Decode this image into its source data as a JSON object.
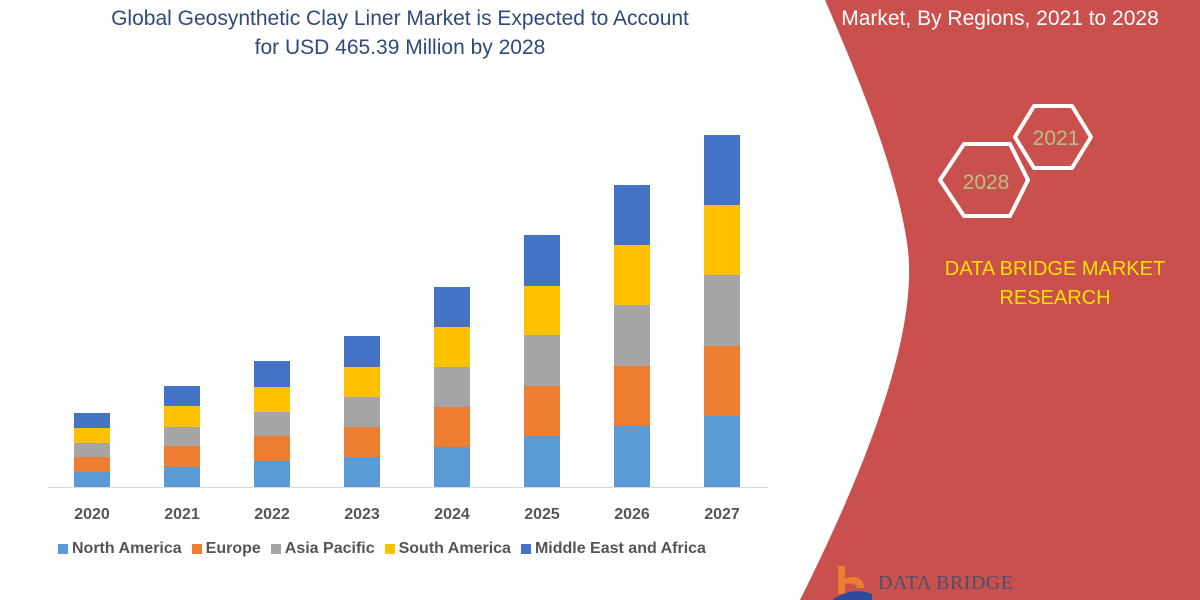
{
  "header": {
    "title_line1": "Global Geosynthetic Clay Liner Market is Expected to Account",
    "title_line2": "for USD 465.39 Million by 2028",
    "right_title": "Market, By Regions, 2021 to 2028"
  },
  "badges": {
    "year_start": "2021",
    "year_end": "2028"
  },
  "brand": {
    "line1": "DATA BRIDGE MARKET",
    "line2": "RESEARCH",
    "logo_text": "DATA BRIDGE"
  },
  "colors": {
    "panel": "#c9504c",
    "brand_text": "#ffe000",
    "badge_text": "#b5c08a",
    "title": "#2f4a7a"
  },
  "chart_data": {
    "type": "bar",
    "stacked": true,
    "title": "",
    "xlabel": "",
    "ylabel": "",
    "y_axis_shown": false,
    "grid": false,
    "legend_position": "bottom",
    "value_units": "relative (no axis printed)",
    "categories": [
      "2020",
      "2021",
      "2022",
      "2023",
      "2024",
      "2025",
      "2026",
      "2027"
    ],
    "series": [
      {
        "name": "North America",
        "color": "#5b9bd5",
        "values": [
          15,
          20,
          26,
          30,
          40,
          51,
          61,
          71
        ]
      },
      {
        "name": "Europe",
        "color": "#ed7d31",
        "values": [
          15,
          21,
          25,
          30,
          40,
          50,
          60,
          70
        ]
      },
      {
        "name": "Asia Pacific",
        "color": "#a5a5a5",
        "values": [
          14,
          19,
          24,
          30,
          40,
          51,
          61,
          71
        ]
      },
      {
        "name": "South America",
        "color": "#ffc000",
        "values": [
          15,
          21,
          25,
          30,
          40,
          49,
          60,
          70
        ]
      },
      {
        "name": "Middle East and Africa",
        "color": "#4472c4",
        "values": [
          15,
          20,
          26,
          31,
          40,
          51,
          60,
          70
        ]
      }
    ]
  }
}
